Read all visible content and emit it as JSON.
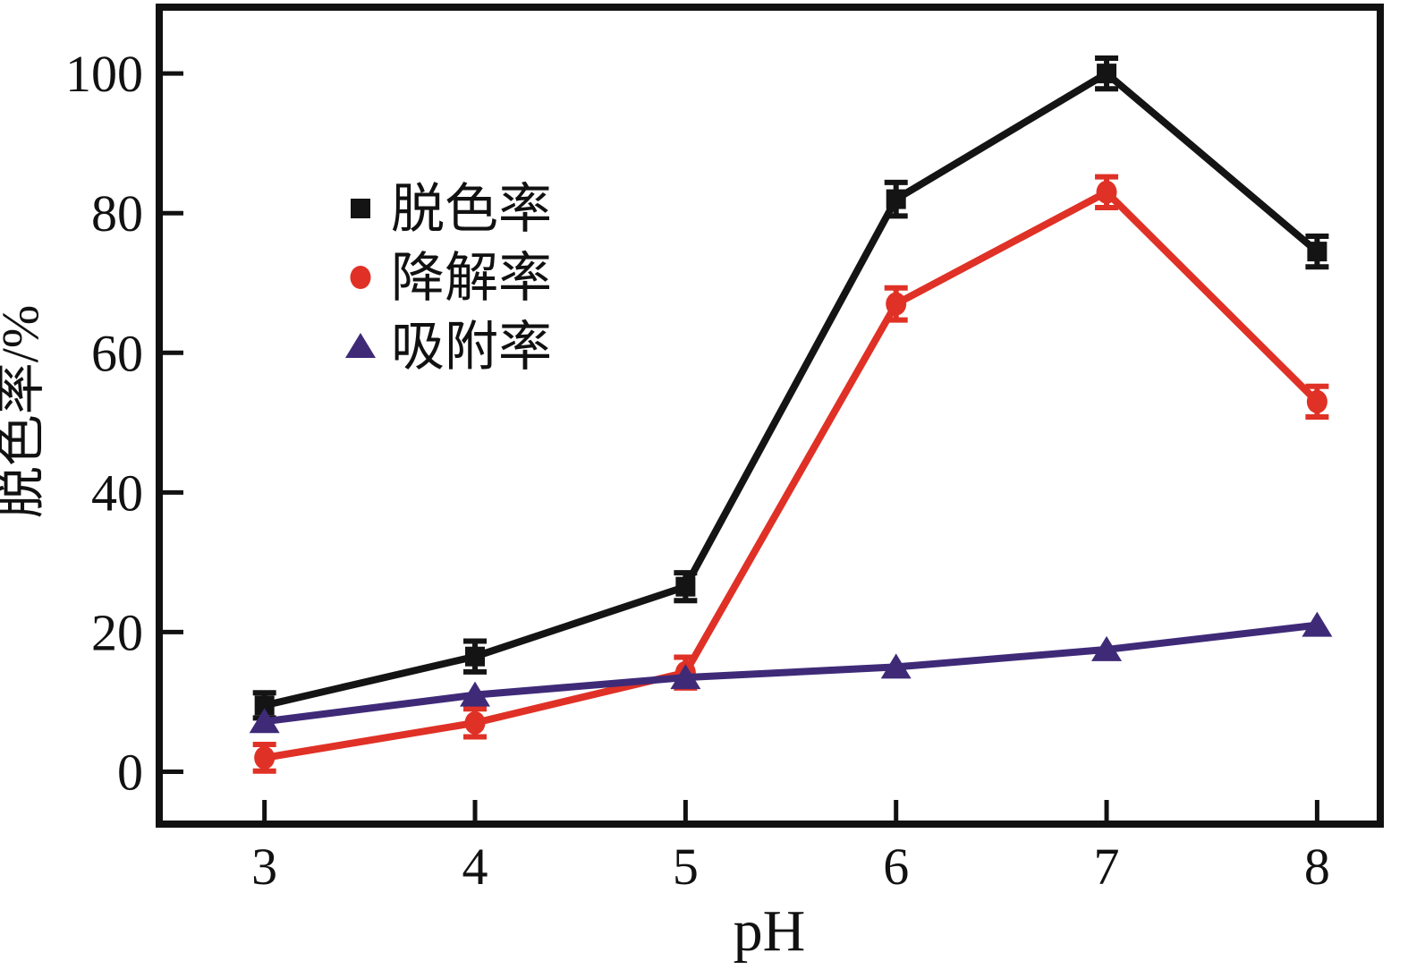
{
  "figure": {
    "background": "#ffffff",
    "frame_color": "#111111"
  },
  "chart_data": {
    "type": "line",
    "xlabel": "pH",
    "ylabel": "脱色率/%",
    "x": [
      3,
      4,
      5,
      6,
      7,
      8
    ],
    "x_ticks": [
      "3",
      "4",
      "5",
      "6",
      "7",
      "8"
    ],
    "y_ticks": [
      "0",
      "20",
      "40",
      "60",
      "80",
      "100"
    ],
    "y_tick_values": [
      0,
      20,
      40,
      60,
      80,
      100
    ],
    "xlim": [
      2.5,
      8.3
    ],
    "ylim": [
      -7.5,
      109.5
    ],
    "grid": false,
    "legend_position": "upper-left-inside",
    "series": [
      {
        "key": "decolorization-rate",
        "name": "脱色率",
        "marker": "square",
        "color": "#141414",
        "values": [
          9.5,
          16.5,
          26.5,
          82,
          100,
          74.5
        ],
        "errors": [
          1.8,
          2.2,
          2.0,
          2.4,
          2.2,
          2.2
        ]
      },
      {
        "key": "degradation-rate",
        "name": "降解率",
        "marker": "circle",
        "color": "#e03126",
        "values": [
          2,
          7,
          14.2,
          67,
          83,
          53
        ],
        "errors": [
          1.9,
          2.0,
          2.2,
          2.3,
          2.2,
          2.2
        ]
      },
      {
        "key": "adsorption-rate",
        "name": "吸附率",
        "marker": "triangle",
        "color": "#3f2a78",
        "values": [
          7.2,
          11,
          13.5,
          15,
          17.5,
          21
        ],
        "errors": [
          0,
          0,
          0,
          0,
          0,
          0
        ]
      }
    ]
  }
}
